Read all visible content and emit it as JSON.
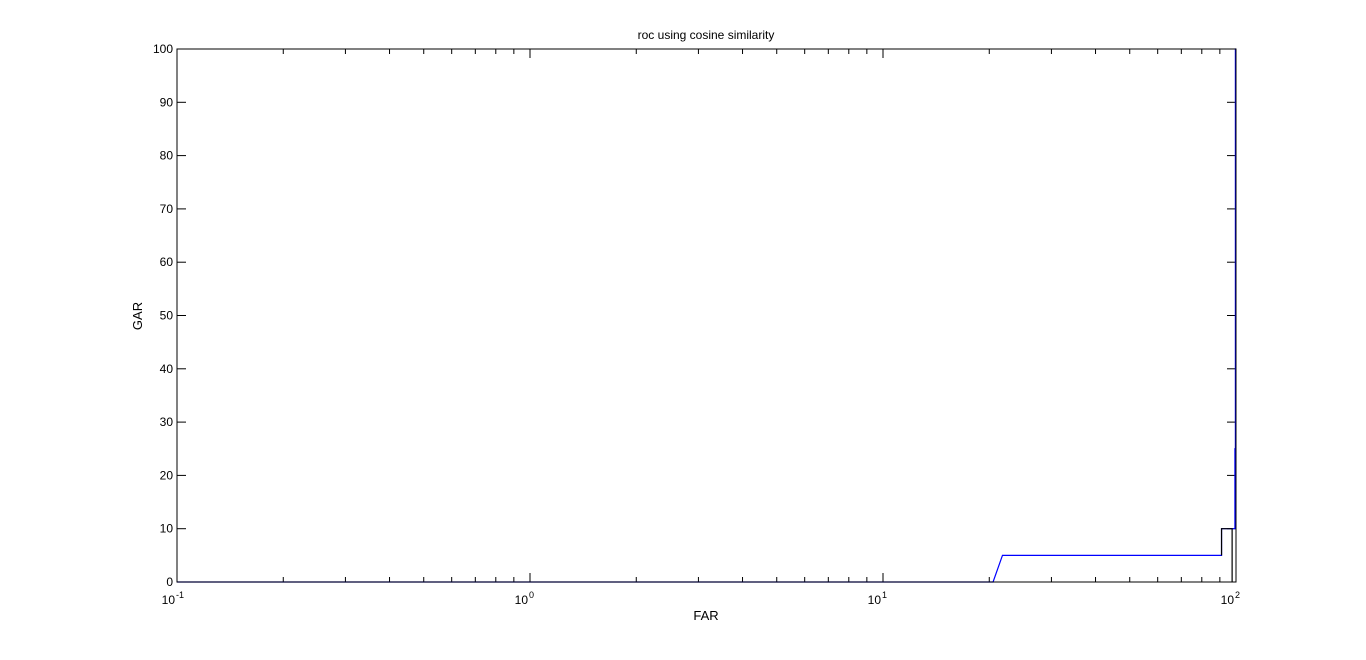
{
  "chart_data": {
    "type": "line",
    "title": "roc using cosine similarity",
    "xlabel": "FAR",
    "ylabel": "GAR",
    "x_scale": "log",
    "xlim": [
      0.1,
      100
    ],
    "ylim": [
      0,
      100
    ],
    "grid": false,
    "legend": "none",
    "x_ticks": [
      {
        "value": 0.1,
        "base": "10",
        "exponent": "-1"
      },
      {
        "value": 1,
        "base": "10",
        "exponent": "0"
      },
      {
        "value": 10,
        "base": "10",
        "exponent": "1"
      },
      {
        "value": 100,
        "base": "10",
        "exponent": "2"
      }
    ],
    "y_ticks": [
      {
        "value": 0,
        "label": "0"
      },
      {
        "value": 10,
        "label": "10"
      },
      {
        "value": 20,
        "label": "20"
      },
      {
        "value": 30,
        "label": "30"
      },
      {
        "value": 40,
        "label": "40"
      },
      {
        "value": 50,
        "label": "50"
      },
      {
        "value": 60,
        "label": "60"
      },
      {
        "value": 70,
        "label": "70"
      },
      {
        "value": 80,
        "label": "80"
      },
      {
        "value": 90,
        "label": "90"
      },
      {
        "value": 100,
        "label": "100"
      }
    ],
    "series": [
      {
        "color": "#0000ff",
        "x": [
          0.1,
          20.5,
          21.8,
          91.0,
          91.0,
          97.5,
          97.5,
          99.3,
          99.3,
          99.6,
          99.6,
          100
        ],
        "y": [
          0,
          0,
          5,
          5,
          10,
          10,
          10,
          10,
          25,
          25,
          100,
          100
        ]
      },
      {
        "color": "#000000",
        "x": [
          91.0,
          91.0,
          97.5,
          97.5
        ],
        "y": [
          5,
          10,
          10,
          0
        ]
      }
    ]
  }
}
